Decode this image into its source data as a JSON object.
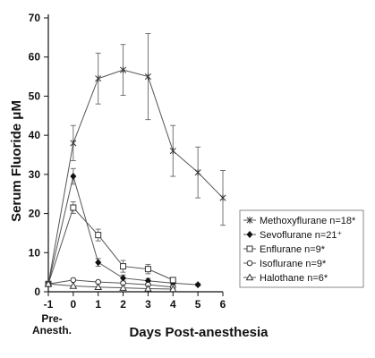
{
  "chart_data": {
    "type": "line",
    "xlabel": "Days Post-anesthesia",
    "ylabel": "Serum Fluoride μM",
    "x_tick_labels": [
      "-1",
      "0",
      "1",
      "2",
      "3",
      "4",
      "5",
      "6"
    ],
    "x_sub_label": "Pre-\nAnesth.",
    "y_ticks": [
      0,
      10,
      20,
      30,
      40,
      50,
      60,
      70
    ],
    "xlim": [
      -1,
      6
    ],
    "ylim": [
      0,
      70
    ],
    "grid": false,
    "legend_position": "right-lower",
    "series": [
      {
        "name": "Methoxyflurane n=18*",
        "marker": "asterisk",
        "x": [
          -1,
          0,
          1,
          2,
          3,
          4,
          5,
          6
        ],
        "y": [
          2,
          38,
          54.5,
          56.7,
          55,
          36,
          30.5,
          24
        ],
        "err": [
          0,
          4.5,
          6.5,
          6.5,
          11,
          6.5,
          6.5,
          7
        ]
      },
      {
        "name": "Sevoflurane n=21⁺",
        "marker": "filled-diamond",
        "x": [
          -1,
          0,
          1,
          2,
          3,
          4,
          5
        ],
        "y": [
          2,
          29.5,
          7.5,
          3.5,
          2.8,
          2.2,
          1.8
        ],
        "err": [
          0,
          2,
          1,
          0.8,
          0.6,
          0.5,
          0.3
        ]
      },
      {
        "name": "Enflurane n=9*",
        "marker": "square",
        "x": [
          -1,
          0,
          1,
          2,
          3,
          4
        ],
        "y": [
          2,
          21.5,
          14.5,
          6.5,
          5.8,
          3
        ],
        "err": [
          0,
          1.5,
          1.5,
          1.5,
          1.2,
          0.5
        ]
      },
      {
        "name": "Isoflurane n=9*",
        "marker": "circle",
        "x": [
          -1,
          0,
          1,
          2,
          3,
          4
        ],
        "y": [
          2,
          3,
          2.5,
          2.2,
          1.8,
          1.2
        ],
        "err": [
          0,
          0,
          0,
          0,
          0,
          0
        ]
      },
      {
        "name": "Halothane n=6*",
        "marker": "triangle",
        "x": [
          -1,
          0,
          1,
          2,
          3,
          4
        ],
        "y": [
          2,
          1.5,
          1.2,
          1.0,
          0.8,
          0.7
        ],
        "err": [
          0,
          0,
          0,
          0,
          0,
          0
        ]
      }
    ]
  }
}
